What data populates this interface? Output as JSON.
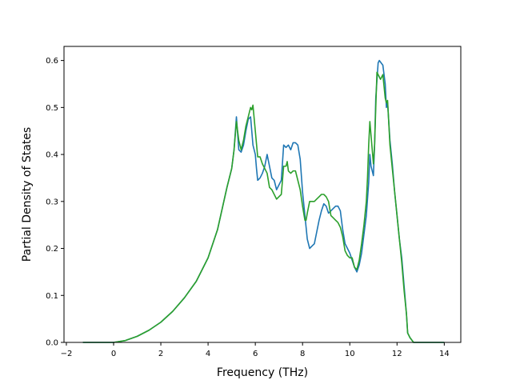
{
  "chart_data": {
    "type": "line",
    "title": "",
    "xlabel": "Frequency (THz)",
    "ylabel": "Partial Density of States",
    "xlim": [
      -2.1,
      14.7
    ],
    "ylim": [
      0,
      0.63
    ],
    "grid": false,
    "legend": "none",
    "x_ticks": [
      -2,
      0,
      2,
      4,
      6,
      8,
      10,
      12,
      14
    ],
    "x_tick_labels": [
      "−2",
      "0",
      "2",
      "4",
      "6",
      "8",
      "10",
      "12",
      "14"
    ],
    "y_ticks": [
      0.0,
      0.1,
      0.2,
      0.3,
      0.4,
      0.5,
      0.6
    ],
    "y_tick_labels": [
      "0.0",
      "0.1",
      "0.2",
      "0.3",
      "0.4",
      "0.5",
      "0.6"
    ],
    "series": [
      {
        "color": "#1f77b4",
        "points": [
          [
            -1.3,
            0.0
          ],
          [
            0.0,
            0.0
          ],
          [
            0.5,
            0.004
          ],
          [
            1.0,
            0.013
          ],
          [
            1.5,
            0.026
          ],
          [
            2.0,
            0.043
          ],
          [
            2.5,
            0.066
          ],
          [
            3.0,
            0.095
          ],
          [
            3.5,
            0.13
          ],
          [
            4.0,
            0.18
          ],
          [
            4.4,
            0.24
          ],
          [
            4.8,
            0.33
          ],
          [
            5.0,
            0.37
          ],
          [
            5.1,
            0.41
          ],
          [
            5.2,
            0.48
          ],
          [
            5.3,
            0.41
          ],
          [
            5.4,
            0.405
          ],
          [
            5.5,
            0.42
          ],
          [
            5.6,
            0.45
          ],
          [
            5.7,
            0.475
          ],
          [
            5.8,
            0.48
          ],
          [
            5.9,
            0.42
          ],
          [
            6.0,
            0.4
          ],
          [
            6.05,
            0.37
          ],
          [
            6.1,
            0.345
          ],
          [
            6.2,
            0.35
          ],
          [
            6.3,
            0.36
          ],
          [
            6.4,
            0.375
          ],
          [
            6.5,
            0.4
          ],
          [
            6.6,
            0.375
          ],
          [
            6.7,
            0.35
          ],
          [
            6.8,
            0.345
          ],
          [
            6.9,
            0.325
          ],
          [
            7.0,
            0.335
          ],
          [
            7.1,
            0.345
          ],
          [
            7.2,
            0.42
          ],
          [
            7.3,
            0.415
          ],
          [
            7.4,
            0.42
          ],
          [
            7.5,
            0.41
          ],
          [
            7.6,
            0.425
          ],
          [
            7.7,
            0.425
          ],
          [
            7.8,
            0.42
          ],
          [
            7.9,
            0.39
          ],
          [
            8.0,
            0.32
          ],
          [
            8.1,
            0.27
          ],
          [
            8.2,
            0.22
          ],
          [
            8.3,
            0.2
          ],
          [
            8.4,
            0.205
          ],
          [
            8.5,
            0.21
          ],
          [
            8.6,
            0.235
          ],
          [
            8.7,
            0.26
          ],
          [
            8.8,
            0.28
          ],
          [
            8.9,
            0.295
          ],
          [
            9.0,
            0.29
          ],
          [
            9.1,
            0.275
          ],
          [
            9.2,
            0.28
          ],
          [
            9.3,
            0.285
          ],
          [
            9.4,
            0.29
          ],
          [
            9.5,
            0.29
          ],
          [
            9.6,
            0.28
          ],
          [
            9.7,
            0.24
          ],
          [
            9.8,
            0.21
          ],
          [
            9.9,
            0.2
          ],
          [
            10.0,
            0.19
          ],
          [
            10.1,
            0.175
          ],
          [
            10.2,
            0.16
          ],
          [
            10.3,
            0.15
          ],
          [
            10.4,
            0.165
          ],
          [
            10.5,
            0.19
          ],
          [
            10.6,
            0.23
          ],
          [
            10.7,
            0.27
          ],
          [
            10.8,
            0.34
          ],
          [
            10.85,
            0.4
          ],
          [
            10.9,
            0.375
          ],
          [
            11.0,
            0.355
          ],
          [
            11.05,
            0.42
          ],
          [
            11.1,
            0.52
          ],
          [
            11.2,
            0.595
          ],
          [
            11.25,
            0.6
          ],
          [
            11.4,
            0.59
          ],
          [
            11.5,
            0.55
          ],
          [
            11.55,
            0.5
          ],
          [
            11.6,
            0.51
          ],
          [
            11.7,
            0.43
          ],
          [
            11.8,
            0.38
          ],
          [
            11.9,
            0.32
          ],
          [
            12.0,
            0.27
          ],
          [
            12.1,
            0.22
          ],
          [
            12.2,
            0.18
          ],
          [
            12.3,
            0.12
          ],
          [
            12.4,
            0.06
          ],
          [
            12.45,
            0.02
          ],
          [
            12.55,
            0.01
          ],
          [
            12.7,
            0.0
          ],
          [
            14.0,
            0.0
          ]
        ]
      },
      {
        "color": "#2ca02c",
        "points": [
          [
            -1.3,
            0.0
          ],
          [
            0.0,
            0.0
          ],
          [
            0.5,
            0.004
          ],
          [
            1.0,
            0.013
          ],
          [
            1.5,
            0.026
          ],
          [
            2.0,
            0.043
          ],
          [
            2.5,
            0.066
          ],
          [
            3.0,
            0.095
          ],
          [
            3.5,
            0.13
          ],
          [
            4.0,
            0.18
          ],
          [
            4.4,
            0.24
          ],
          [
            4.8,
            0.33
          ],
          [
            5.0,
            0.37
          ],
          [
            5.1,
            0.41
          ],
          [
            5.2,
            0.47
          ],
          [
            5.3,
            0.43
          ],
          [
            5.4,
            0.41
          ],
          [
            5.5,
            0.43
          ],
          [
            5.6,
            0.46
          ],
          [
            5.7,
            0.48
          ],
          [
            5.8,
            0.5
          ],
          [
            5.85,
            0.495
          ],
          [
            5.9,
            0.505
          ],
          [
            6.0,
            0.45
          ],
          [
            6.1,
            0.395
          ],
          [
            6.2,
            0.395
          ],
          [
            6.3,
            0.38
          ],
          [
            6.4,
            0.37
          ],
          [
            6.5,
            0.36
          ],
          [
            6.6,
            0.33
          ],
          [
            6.7,
            0.325
          ],
          [
            6.8,
            0.315
          ],
          [
            6.9,
            0.305
          ],
          [
            7.0,
            0.31
          ],
          [
            7.1,
            0.315
          ],
          [
            7.2,
            0.375
          ],
          [
            7.3,
            0.375
          ],
          [
            7.35,
            0.385
          ],
          [
            7.4,
            0.365
          ],
          [
            7.5,
            0.36
          ],
          [
            7.6,
            0.365
          ],
          [
            7.7,
            0.365
          ],
          [
            7.8,
            0.345
          ],
          [
            7.9,
            0.325
          ],
          [
            8.0,
            0.29
          ],
          [
            8.1,
            0.26
          ],
          [
            8.15,
            0.26
          ],
          [
            8.2,
            0.275
          ],
          [
            8.3,
            0.3
          ],
          [
            8.4,
            0.3
          ],
          [
            8.5,
            0.3
          ],
          [
            8.6,
            0.305
          ],
          [
            8.7,
            0.31
          ],
          [
            8.8,
            0.315
          ],
          [
            8.9,
            0.315
          ],
          [
            9.0,
            0.31
          ],
          [
            9.1,
            0.3
          ],
          [
            9.2,
            0.27
          ],
          [
            9.3,
            0.265
          ],
          [
            9.4,
            0.26
          ],
          [
            9.5,
            0.255
          ],
          [
            9.6,
            0.245
          ],
          [
            9.7,
            0.225
          ],
          [
            9.8,
            0.195
          ],
          [
            9.9,
            0.185
          ],
          [
            10.0,
            0.18
          ],
          [
            10.1,
            0.18
          ],
          [
            10.2,
            0.16
          ],
          [
            10.3,
            0.155
          ],
          [
            10.4,
            0.175
          ],
          [
            10.5,
            0.21
          ],
          [
            10.6,
            0.25
          ],
          [
            10.7,
            0.3
          ],
          [
            10.75,
            0.35
          ],
          [
            10.8,
            0.42
          ],
          [
            10.85,
            0.47
          ],
          [
            10.9,
            0.44
          ],
          [
            11.0,
            0.38
          ],
          [
            11.05,
            0.42
          ],
          [
            11.1,
            0.5
          ],
          [
            11.15,
            0.575
          ],
          [
            11.3,
            0.56
          ],
          [
            11.4,
            0.57
          ],
          [
            11.5,
            0.52
          ],
          [
            11.55,
            0.51
          ],
          [
            11.6,
            0.515
          ],
          [
            11.7,
            0.42
          ],
          [
            11.8,
            0.37
          ],
          [
            11.9,
            0.32
          ],
          [
            12.0,
            0.27
          ],
          [
            12.1,
            0.22
          ],
          [
            12.2,
            0.17
          ],
          [
            12.3,
            0.11
          ],
          [
            12.4,
            0.06
          ],
          [
            12.45,
            0.02
          ],
          [
            12.55,
            0.01
          ],
          [
            12.7,
            0.0
          ],
          [
            14.0,
            0.0
          ]
        ]
      }
    ]
  }
}
